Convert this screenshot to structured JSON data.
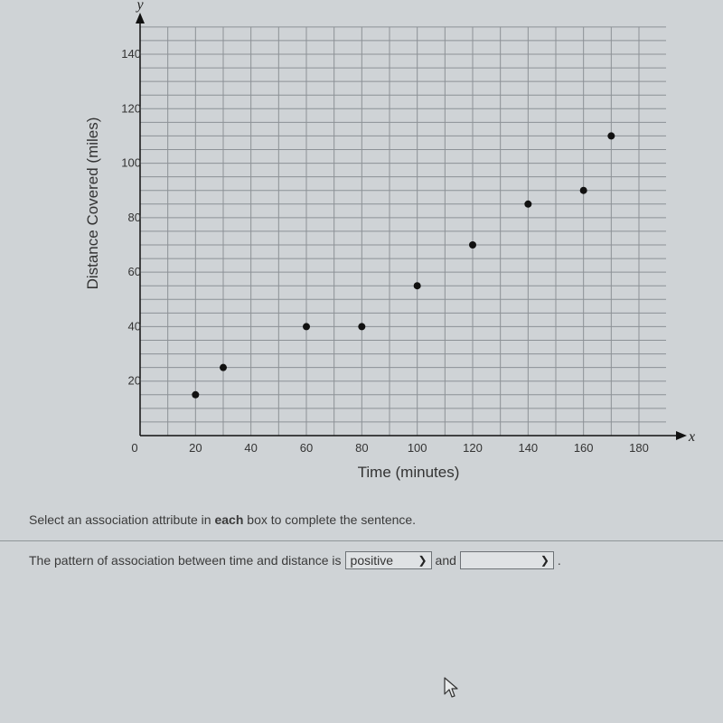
{
  "chart_data": {
    "type": "scatter",
    "x_axis_letter": "x",
    "y_axis_letter": "y",
    "xlabel": "Time (minutes)",
    "ylabel": "Distance Covered (miles)",
    "xlim": [
      0,
      190
    ],
    "ylim": [
      0,
      145
    ],
    "x_ticks": [
      "0",
      "20",
      "40",
      "60",
      "80",
      "100",
      "120",
      "140",
      "160",
      "180"
    ],
    "x_tick_values": [
      0,
      20,
      40,
      60,
      80,
      100,
      120,
      140,
      160,
      180
    ],
    "y_ticks": [
      "20",
      "40",
      "60",
      "80",
      "100",
      "120",
      "140"
    ],
    "y_tick_values": [
      20,
      40,
      60,
      80,
      100,
      120,
      140
    ],
    "grid": true,
    "points": [
      {
        "x": 20,
        "y": 15
      },
      {
        "x": 30,
        "y": 25
      },
      {
        "x": 60,
        "y": 40
      },
      {
        "x": 80,
        "y": 40
      },
      {
        "x": 100,
        "y": 55
      },
      {
        "x": 120,
        "y": 70
      },
      {
        "x": 140,
        "y": 85
      },
      {
        "x": 160,
        "y": 90
      },
      {
        "x": 170,
        "y": 110
      }
    ]
  },
  "question": {
    "instruction_before": "Select an association attribute in ",
    "instruction_bold": "each",
    "instruction_after": " box to complete the sentence.",
    "sentence_start": "The pattern of association between time and distance is",
    "dropdown1_value": "positive",
    "connector": "and",
    "dropdown2_value": "",
    "sentence_end": "."
  },
  "colors": {
    "grid": "#8c9196",
    "point": "#111111",
    "axis": "#111111"
  }
}
